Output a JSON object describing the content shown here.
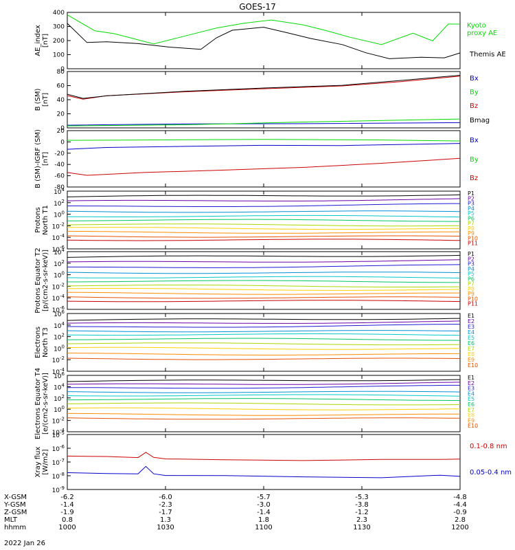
{
  "title": "GOES-17",
  "date_label": "2022 Jan 26",
  "footer": {
    "rows": [
      {
        "name": "X-GSM",
        "values": [
          "-6.2",
          "-6.0",
          "-5.7",
          "-5.3",
          "-4.8"
        ]
      },
      {
        "name": "Y-GSM",
        "values": [
          "-1.4",
          "-2.3",
          "-3.0",
          "-3.8",
          "-4.4"
        ]
      },
      {
        "name": "Z-GSM",
        "values": [
          "-1.9",
          "-1.7",
          "-1.4",
          "-1.2",
          "-0.9"
        ]
      },
      {
        "name": "MLT",
        "values": [
          "0.8",
          "1.3",
          "1.8",
          "2.3",
          "2.8"
        ]
      },
      {
        "name": "hhmm",
        "values": [
          "1000",
          "1030",
          "1100",
          "1130",
          "1200"
        ]
      }
    ]
  },
  "colors": {
    "black": "#000000",
    "green": "#00dd00",
    "blue": "#0000cc",
    "red": "#cc0000",
    "p_series": [
      "#000000",
      "#6a00a8",
      "#1a1ad8",
      "#0090d8",
      "#00c8c8",
      "#00c860",
      "#a8d800",
      "#ffd000",
      "#ff8c00",
      "#e85000",
      "#cc0000"
    ]
  },
  "chart_data": [
    {
      "type": "line",
      "panel": "ae",
      "ylabel": "AE_index [nT]",
      "ylim": [
        0,
        400
      ],
      "yticks": [
        "0",
        "100",
        "200",
        "300",
        "400"
      ],
      "x": [
        0,
        0.1,
        0.2,
        0.3,
        0.4,
        0.5,
        0.6,
        0.7,
        0.8,
        0.9,
        1.0
      ],
      "series": [
        {
          "name": "Kyoto proxy AE",
          "label_lines": [
            "Kyoto",
            "proxy AE"
          ],
          "color": "#00dd00",
          "x": [
            0,
            0.07,
            0.12,
            0.22,
            0.3,
            0.38,
            0.45,
            0.52,
            0.6,
            0.66,
            0.72,
            0.8,
            0.88,
            0.93,
            0.97,
            1.0
          ],
          "values": [
            380,
            265,
            255,
            175,
            235,
            285,
            330,
            345,
            310,
            270,
            230,
            175,
            250,
            200,
            320,
            310
          ]
        },
        {
          "name": "Themis AE",
          "label_lines": [
            "Themis AE"
          ],
          "color": "#000000",
          "x": [
            0,
            0.05,
            0.1,
            0.18,
            0.26,
            0.34,
            0.38,
            0.42,
            0.5,
            0.56,
            0.62,
            0.7,
            0.76,
            0.82,
            0.9,
            0.96,
            1.0
          ],
          "values": [
            320,
            180,
            195,
            180,
            155,
            135,
            220,
            270,
            290,
            255,
            215,
            175,
            120,
            75,
            80,
            75,
            110
          ]
        }
      ]
    },
    {
      "type": "line",
      "panel": "bsm",
      "ylabel": "B (SM) [nT]",
      "ylim": [
        0,
        80
      ],
      "yticks": [
        "0",
        "20",
        "40",
        "60",
        "80"
      ],
      "series": [
        {
          "name": "Bx",
          "color": "#0000cc",
          "x": [
            0,
            0.3,
            0.6,
            1.0
          ],
          "values": [
            4,
            5,
            6,
            8
          ]
        },
        {
          "name": "By",
          "color": "#00dd00",
          "x": [
            0,
            0.3,
            0.6,
            1.0
          ],
          "values": [
            3,
            5,
            8,
            12
          ]
        },
        {
          "name": "Bz",
          "color": "#cc0000",
          "x": [
            0,
            0.04,
            0.1,
            0.3,
            0.5,
            0.7,
            0.85,
            1.0
          ],
          "values": [
            46,
            41,
            45,
            51,
            55,
            60,
            66,
            73
          ]
        },
        {
          "name": "Bmag",
          "color": "#000000",
          "x": [
            0,
            0.04,
            0.1,
            0.3,
            0.5,
            0.7,
            0.85,
            1.0
          ],
          "values": [
            48,
            42,
            46,
            52,
            56,
            61,
            67,
            74
          ]
        }
      ]
    },
    {
      "type": "line",
      "panel": "bigrf",
      "ylabel": "B (SM)-IGRF (SM) [nT]",
      "ylim": [
        -80,
        20
      ],
      "yticks": [
        "-80",
        "-60",
        "-40",
        "-20",
        "0",
        "20"
      ],
      "series": [
        {
          "name": "Bx",
          "color": "#0000cc",
          "x": [
            0,
            0.1,
            0.3,
            0.5,
            0.7,
            1.0
          ],
          "values": [
            -14,
            -10,
            -8,
            -7,
            -6,
            -3
          ]
        },
        {
          "name": "By",
          "color": "#00dd00",
          "x": [
            0,
            0.2,
            0.5,
            0.8,
            1.0
          ],
          "values": [
            2,
            3,
            4,
            3,
            2
          ]
        },
        {
          "name": "Bz",
          "color": "#cc0000",
          "x": [
            0,
            0.05,
            0.2,
            0.4,
            0.6,
            0.8,
            1.0
          ],
          "values": [
            -55,
            -60,
            -55,
            -50,
            -45,
            -38,
            -30
          ]
        }
      ]
    },
    {
      "type": "line",
      "panel": "protons_t1",
      "ylabel": "Protons North T1",
      "log": true,
      "ylim_exp": [
        -6,
        4
      ],
      "yticks": [
        "10^4",
        "10^2",
        "10^0",
        "10^-2",
        "10^-4",
        "10^-6"
      ],
      "legend": [
        "P1",
        "P2",
        "P3",
        "P4",
        "P5",
        "P6",
        "P7",
        "P8",
        "P9",
        "P10",
        "P11"
      ],
      "series_log": [
        3.0,
        2.2,
        1.3,
        0.5,
        -0.3,
        -1.0,
        -1.8,
        -2.4,
        -3.1,
        -3.8,
        -4.4
      ]
    },
    {
      "type": "line",
      "panel": "protons_t2",
      "ylabel": "Protons Equator T2 [p/(cm2-s-sr-keV)]",
      "log": true,
      "ylim_exp": [
        -6,
        4
      ],
      "yticks": [
        "10^4",
        "10^2",
        "10^0",
        "10^-2",
        "10^-4",
        "10^-6"
      ],
      "legend": [
        "P1",
        "P2",
        "P3",
        "P4",
        "P5",
        "P6",
        "P7",
        "P8",
        "P9",
        "P10",
        "P11"
      ],
      "series_log": [
        3.0,
        2.1,
        1.2,
        0.4,
        -0.4,
        -1.1,
        -1.9,
        -2.5,
        -3.2,
        -3.9,
        -4.5
      ]
    },
    {
      "type": "line",
      "panel": "electrons_t3",
      "ylabel": "Electrons North T3",
      "log": true,
      "ylim_exp": [
        -4,
        6
      ],
      "yticks": [
        "10^6",
        "10^4",
        "10^2",
        "10^0",
        "10^-2",
        "10^-4"
      ],
      "legend": [
        "E1",
        "E2",
        "E3",
        "E4",
        "E5",
        "E6",
        "E7",
        "E8",
        "E9",
        "E10"
      ],
      "series_log": [
        4.8,
        4.2,
        3.6,
        3.0,
        2.4,
        1.6,
        0.8,
        0.0,
        -1.0,
        -1.8
      ]
    },
    {
      "type": "line",
      "panel": "electrons_t4",
      "ylabel": "Electrons Equator T4 [e/(cm2-s-sr-keV)]",
      "log": true,
      "ylim_exp": [
        -4,
        6
      ],
      "yticks": [
        "10^6",
        "10^4",
        "10^2",
        "10^0",
        "10^-2",
        "10^-4"
      ],
      "legend": [
        "E1",
        "E2",
        "E3",
        "E4",
        "E5",
        "E6",
        "E7",
        "E8",
        "E9",
        "E10"
      ],
      "series_log": [
        4.9,
        4.3,
        3.7,
        3.1,
        2.5,
        1.8,
        1.0,
        0.1,
        -0.9,
        -1.6
      ]
    },
    {
      "type": "line",
      "panel": "xray",
      "ylabel": "Xray flux [W/m2]",
      "log": true,
      "ylim_exp": [
        -9,
        -5
      ],
      "yticks": [
        "10^-5",
        "10^-6",
        "10^-7",
        "10^-8",
        "10^-9"
      ],
      "series": [
        {
          "name": "0.1-0.8 nm",
          "color": "#cc0000",
          "x": [
            0,
            0.1,
            0.18,
            0.2,
            0.22,
            0.25,
            0.4,
            0.6,
            0.8,
            0.95,
            1.0
          ],
          "values": [
            -6.6,
            -6.6,
            -6.7,
            -6.3,
            -6.7,
            -6.8,
            -6.8,
            -6.85,
            -6.85,
            -6.8,
            -6.8
          ]
        },
        {
          "name": "0.05-0.4 nm",
          "color": "#0000cc",
          "x": [
            0,
            0.1,
            0.18,
            0.2,
            0.22,
            0.25,
            0.4,
            0.6,
            0.8,
            0.95,
            1.0
          ],
          "values": [
            -7.8,
            -7.85,
            -7.9,
            -7.3,
            -7.9,
            -8.0,
            -8.0,
            -8.05,
            -8.1,
            -7.95,
            -8.0
          ]
        }
      ]
    }
  ]
}
